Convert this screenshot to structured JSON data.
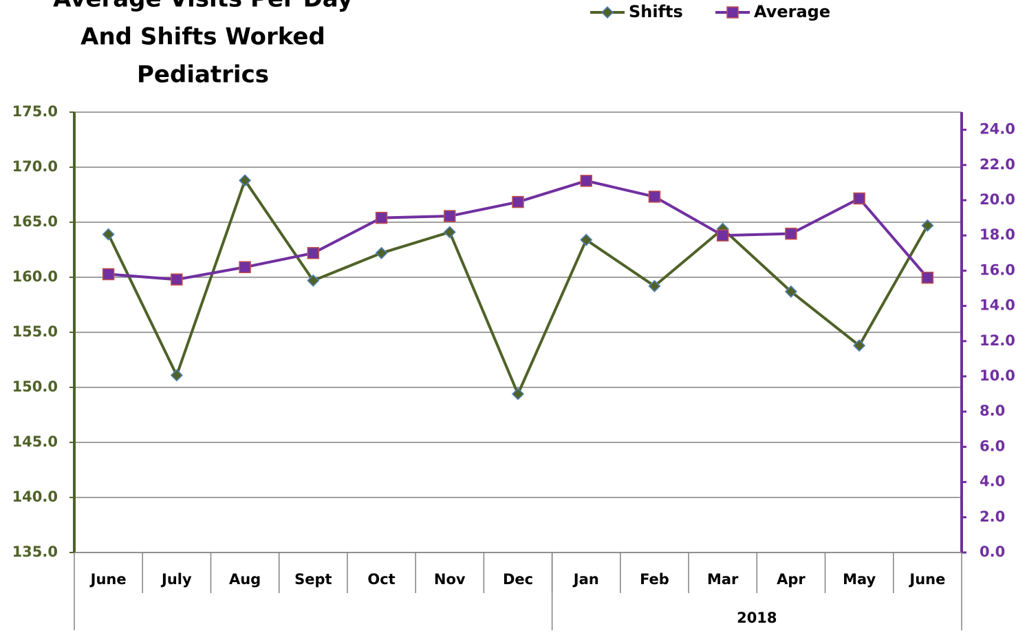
{
  "chart_data": {
    "type": "line",
    "title": [
      "Average Visits Per Day",
      "And Shifts Worked",
      "Pediatrics"
    ],
    "categories": [
      "June",
      "July",
      "Aug",
      "Sept",
      "Oct",
      "Nov",
      "Dec",
      "Jan",
      "Feb",
      "Mar",
      "Apr",
      "May",
      "June"
    ],
    "group_labels": [
      null,
      "2018"
    ],
    "group_sizes": [
      7,
      6
    ],
    "series": [
      {
        "name": "Shifts",
        "color": "#4f6228",
        "marker_color": "#4f6228",
        "marker_edge": "#4f81bd",
        "marker": "diamond",
        "axis": "y",
        "values": [
          163.9,
          151.1,
          168.8,
          159.7,
          162.2,
          164.1,
          149.4,
          163.4,
          159.2,
          164.4,
          158.7,
          153.8,
          164.7
        ]
      },
      {
        "name": "Average",
        "color": "#7030a0",
        "marker_color": "#7030a0",
        "marker_edge": "#c0504d",
        "marker": "square",
        "axis": "y2",
        "values": [
          15.8,
          15.5,
          16.2,
          17.0,
          19.0,
          19.1,
          19.9,
          21.1,
          20.2,
          18.0,
          18.1,
          20.1,
          15.6
        ]
      }
    ],
    "ylim": [
      135,
      175
    ],
    "yticks": [
      {
        "value": 135,
        "label": "135.0"
      },
      {
        "value": 140,
        "label": "140.0"
      },
      {
        "value": 145,
        "label": "145.0"
      },
      {
        "value": 150,
        "label": "150.0"
      },
      {
        "value": 155,
        "label": "155.0"
      },
      {
        "value": 160,
        "label": "160.0"
      },
      {
        "value": 165,
        "label": "165.0"
      },
      {
        "value": 170,
        "label": "170.0"
      },
      {
        "value": 175,
        "label": "175.0"
      }
    ],
    "y2lim": [
      0,
      25
    ],
    "y2ticks": [
      {
        "value": 0,
        "label": "0.0"
      },
      {
        "value": 2,
        "label": "2.0"
      },
      {
        "value": 4,
        "label": "4.0"
      },
      {
        "value": 6,
        "label": "6.0"
      },
      {
        "value": 8,
        "label": "8.0"
      },
      {
        "value": 10,
        "label": "10.0"
      },
      {
        "value": 12,
        "label": "12.0"
      },
      {
        "value": 14,
        "label": "14.0"
      },
      {
        "value": 16,
        "label": "16.0"
      },
      {
        "value": 18,
        "label": "18.0"
      },
      {
        "value": 20,
        "label": "20.0"
      },
      {
        "value": 22,
        "label": "22.0"
      },
      {
        "value": 24,
        "label": "24.0"
      }
    ],
    "grid": true,
    "legend": "top",
    "y_axis_color": "#4f6228",
    "y2_axis_color": "#7030a0"
  }
}
